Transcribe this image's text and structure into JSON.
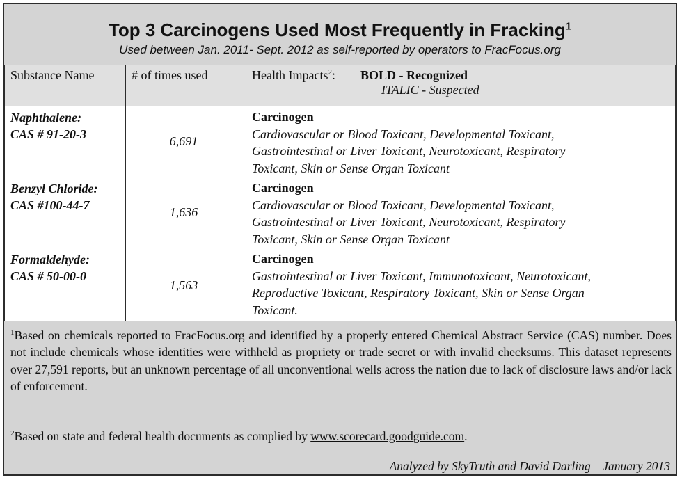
{
  "header": {
    "title": "Top 3 Carcinogens Used Most Frequently in Fracking",
    "title_sup": "1",
    "subtitle": "Used between Jan. 2011- Sept. 2012 as self-reported by operators to FracFocus.org"
  },
  "table": {
    "col_substance": "Substance Name",
    "col_times": "# of times used",
    "col_health": "Health Impacts",
    "col_health_sup": "2",
    "col_health_suffix": ":",
    "legend_bold": "BOLD - Recognized",
    "legend_italic": "ITALIC - Suspected",
    "rows": [
      {
        "name": "Naphthalene:",
        "cas": "CAS # 91-20-3",
        "times": "6,691",
        "recognized": "Carcinogen",
        "suspected_lines": [
          "Cardiovascular or Blood Toxicant, Developmental Toxicant,",
          "Gastrointestinal or Liver Toxicant, Neurotoxicant, Respiratory",
          "Toxicant, Skin or Sense Organ Toxicant"
        ]
      },
      {
        "name": "Benzyl Chloride:",
        "cas": "CAS #100-44-7",
        "times": "1,636",
        "recognized": "Carcinogen",
        "suspected_lines": [
          "Cardiovascular or Blood Toxicant, Developmental Toxicant,",
          "Gastrointestinal or Liver Toxicant, Neurotoxicant, Respiratory",
          "Toxicant, Skin or Sense Organ Toxicant"
        ]
      },
      {
        "name": "Formaldehyde:",
        "cas": "CAS # 50-00-0",
        "times": "1,563",
        "recognized": "Carcinogen",
        "suspected_lines": [
          "Gastrointestinal or Liver Toxicant, Immunotoxicant, Neurotoxicant,",
          "Reproductive Toxicant, Respiratory Toxicant, Skin or Sense Organ",
          "Toxicant."
        ]
      }
    ]
  },
  "notes": {
    "note1_sup": "1",
    "note1_text": "Based on chemicals reported to FracFocus.org and identified by a properly entered Chemical Abstract Service (CAS) number. Does not include chemicals whose identities were withheld as propriety or trade secret or with invalid checksums. This dataset represents over 27,591 reports, but an unknown percentage of all unconventional wells across the nation due to lack of disclosure laws and/or lack of enforcement.",
    "note2_sup": "2",
    "note2_text": "Based on state and federal health documents as complied by ",
    "note2_link": "www.scorecard.goodguide.com",
    "note2_end": ".",
    "credit": "Analyzed by SkyTruth and David Darling – January 2013"
  }
}
